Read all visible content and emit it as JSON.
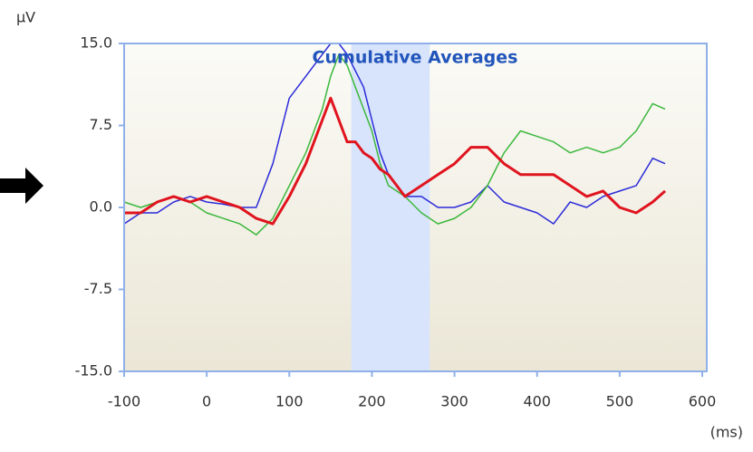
{
  "chart_data": {
    "type": "line",
    "title": "Cumulative Averages",
    "ylabel": "µV",
    "xlabel": "(ms)",
    "x": [
      -100,
      -80,
      -60,
      -40,
      -20,
      0,
      20,
      40,
      60,
      80,
      100,
      120,
      140,
      150,
      160,
      170,
      180,
      190,
      200,
      210,
      220,
      240,
      260,
      280,
      300,
      320,
      340,
      360,
      380,
      400,
      420,
      440,
      460,
      480,
      500,
      520,
      540,
      555
    ],
    "series": [
      {
        "color": "#2b2bd9",
        "width": 1.5,
        "values": [
          -1.5,
          -0.5,
          -0.5,
          0.5,
          1,
          0.5,
          0.3,
          0,
          0,
          4,
          10,
          12,
          14,
          15,
          15,
          14,
          12.5,
          11,
          8,
          5,
          3,
          1,
          1,
          0,
          0,
          0.5,
          2,
          0.5,
          0,
          -0.5,
          -1.5,
          0.5,
          0,
          1,
          1.5,
          2,
          4.5,
          4
        ]
      },
      {
        "color": "#3cb83c",
        "width": 1.5,
        "values": [
          0.5,
          0,
          0.5,
          1,
          0.5,
          -0.5,
          -1,
          -1.5,
          -2.5,
          -1,
          2,
          5,
          9,
          12,
          14,
          13,
          11,
          9,
          7,
          4,
          2,
          1,
          -0.5,
          -1.5,
          -1,
          0,
          2,
          5,
          7,
          6.5,
          6,
          5,
          5.5,
          5,
          5.5,
          7,
          9.5,
          9
        ]
      },
      {
        "color": "#e0141e",
        "width": 3,
        "values": [
          -0.5,
          -0.5,
          0.5,
          1,
          0.5,
          1,
          0.5,
          0,
          -1,
          -1.5,
          1,
          4,
          8,
          10,
          8,
          6,
          6,
          5,
          4.5,
          3.5,
          3,
          1,
          2,
          3,
          4,
          5.5,
          5.5,
          4,
          3,
          3,
          3,
          2,
          1,
          1.5,
          0,
          -0.5,
          0.5,
          1.5
        ]
      }
    ],
    "shaded_range": [
      175,
      270
    ],
    "shade_color": "#d8e4fb",
    "xlim": [
      -100,
      600
    ],
    "xticks": [
      -100,
      0,
      100,
      200,
      300,
      400,
      500,
      600
    ],
    "ylim": [
      -15,
      15
    ],
    "yticks": [
      {
        "value": -15,
        "label": "-15.0"
      },
      {
        "value": -7.5,
        "label": "-7.5"
      },
      {
        "value": 0,
        "label": "0.0"
      },
      {
        "value": 7.5,
        "label": "7.5"
      },
      {
        "value": 15,
        "label": "15.0"
      }
    ]
  }
}
